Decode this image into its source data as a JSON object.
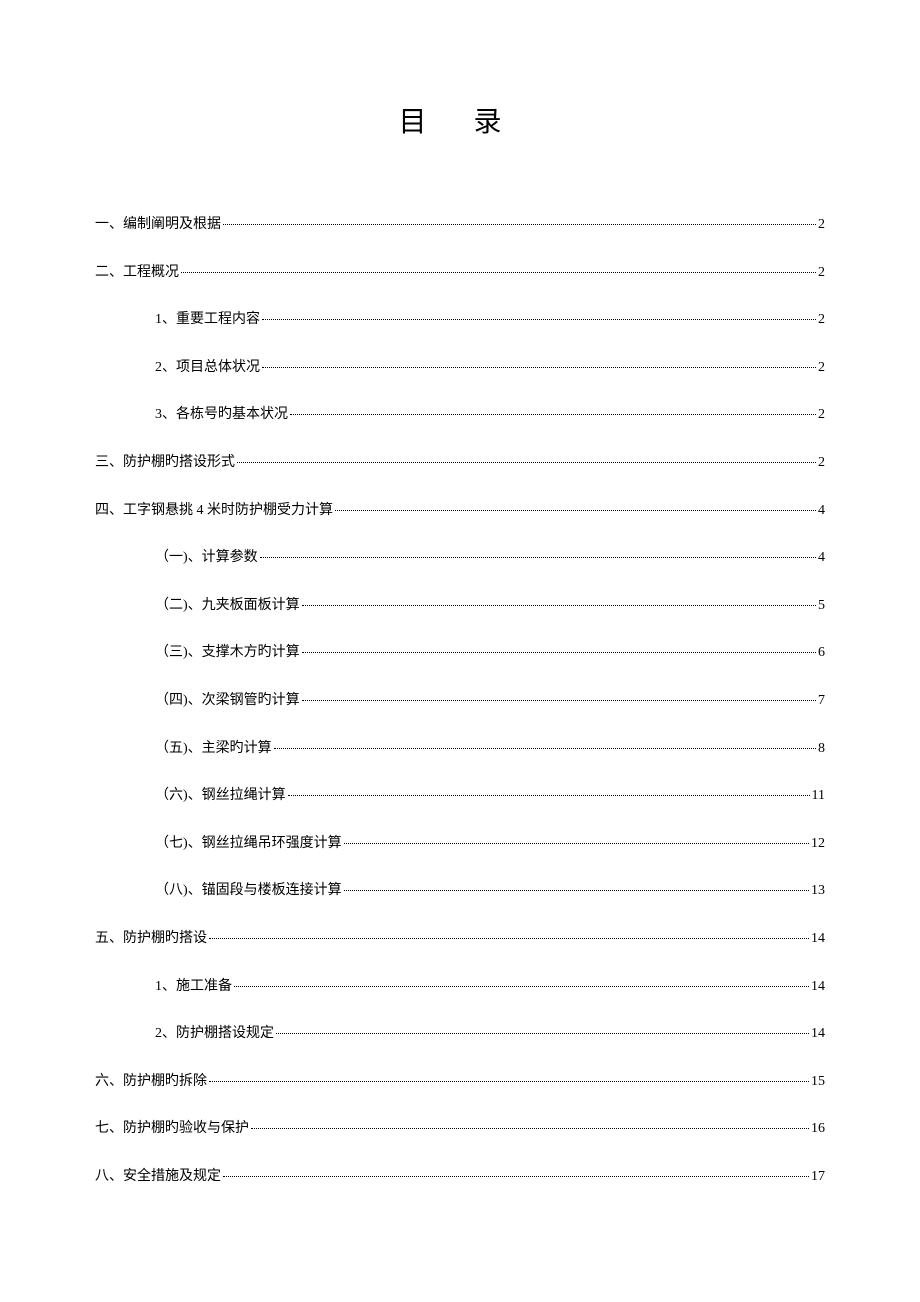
{
  "title": "目  录",
  "toc": [
    {
      "level": 1,
      "label": "一、编制阐明及根据",
      "page": "2"
    },
    {
      "level": 1,
      "label": "二、工程概况",
      "page": "2"
    },
    {
      "level": 2,
      "label": "1、重要工程内容 ",
      "page": "2"
    },
    {
      "level": 2,
      "label": "2、项目总体状况 ",
      "page": "2"
    },
    {
      "level": 2,
      "label": "3、各栋号旳基本状况 ",
      "page": "2"
    },
    {
      "level": 1,
      "label": "三、防护棚旳搭设形式",
      "page": "2"
    },
    {
      "level": 1,
      "label": "四、工字钢悬挑 4 米时防护棚受力计算",
      "page": "4"
    },
    {
      "level": 2,
      "label": "（一)、计算参数 ",
      "page": "4"
    },
    {
      "level": 2,
      "label": "（二)、九夹板面板计算 ",
      "page": "5"
    },
    {
      "level": 2,
      "label": "（三)、支撑木方旳计算 ",
      "page": "6"
    },
    {
      "level": 2,
      "label": "（四)、次梁钢管旳计算 ",
      "page": "7"
    },
    {
      "level": 2,
      "label": "（五)、主梁旳计算 ",
      "page": "8"
    },
    {
      "level": 2,
      "label": "（六)、钢丝拉绳计算 ",
      "page": "11"
    },
    {
      "level": 2,
      "label": "（七)、钢丝拉绳吊环强度计算 ",
      "page": "12"
    },
    {
      "level": 2,
      "label": "（八)、锚固段与楼板连接计算 ",
      "page": "13"
    },
    {
      "level": 1,
      "label": "五、防护棚旳搭设",
      "page": "14"
    },
    {
      "level": 2,
      "label": "1、施工准备 ",
      "page": "14"
    },
    {
      "level": 2,
      "label": "2、防护棚搭设规定 ",
      "page": "14"
    },
    {
      "level": 1,
      "label": "六、防护棚旳拆除",
      "page": "15"
    },
    {
      "level": 1,
      "label": "七、防护棚旳验收与保护",
      "page": "16"
    },
    {
      "level": 1,
      "label": "八、安全措施及规定",
      "page": "17"
    }
  ]
}
